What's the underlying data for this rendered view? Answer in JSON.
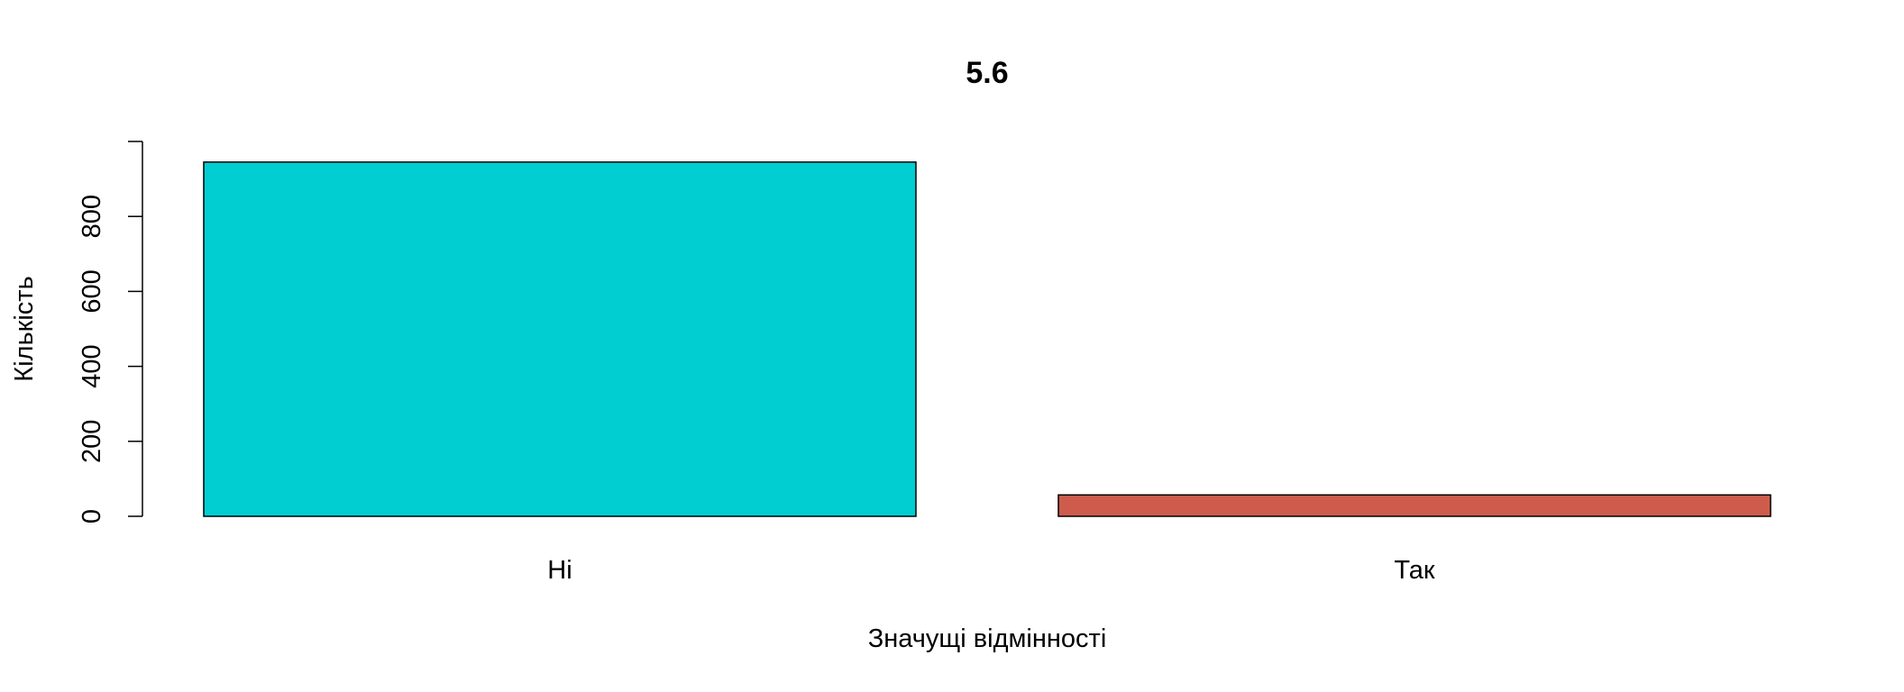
{
  "chart_data": {
    "type": "bar",
    "title": "5.6",
    "xlabel": "Значущі відмінності",
    "ylabel": "Кількість",
    "categories": [
      "Ні",
      "Так"
    ],
    "values": [
      945,
      57
    ],
    "colors": [
      "#00CED1",
      "#CD5C4C"
    ],
    "ylim": [
      0,
      1000
    ],
    "yticks": [
      0,
      200,
      400,
      600,
      800
    ],
    "grid": false,
    "legend": "none"
  }
}
